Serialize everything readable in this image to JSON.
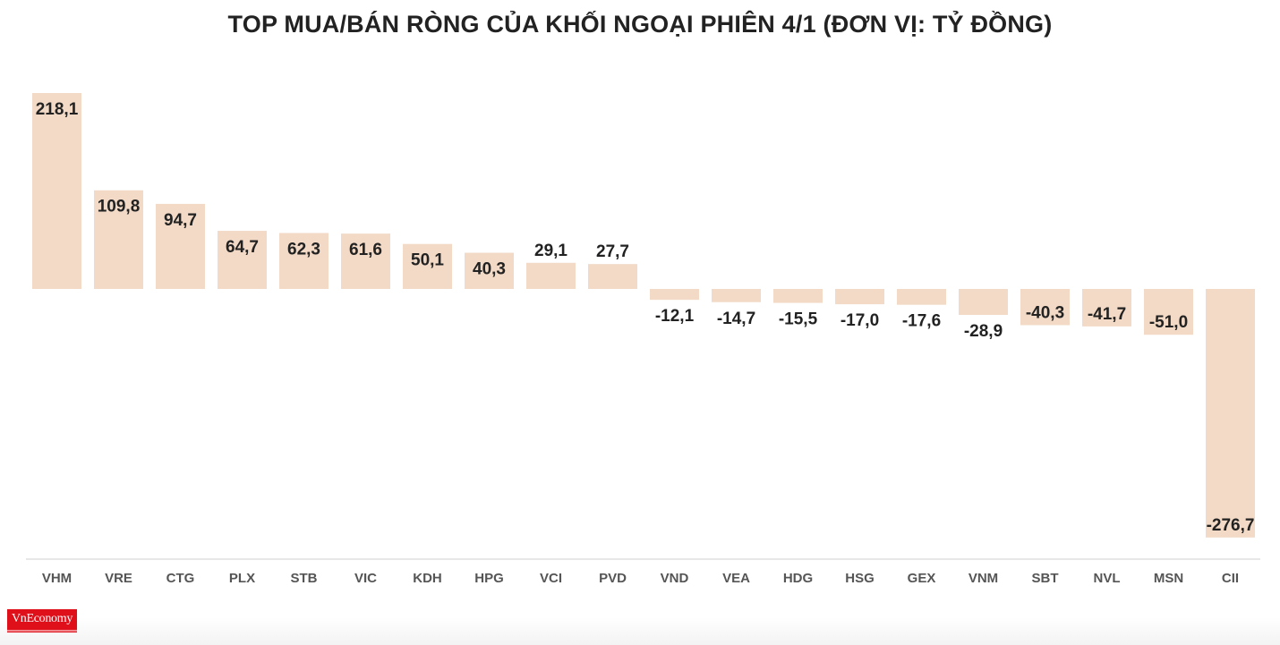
{
  "chart_data": {
    "type": "bar",
    "title": "TOP MUA/BÁN RÒNG CỦA KHỐI NGOẠI PHIÊN 4/1 (ĐƠN VỊ: TỶ ĐỒNG)",
    "categories": [
      "VHM",
      "VRE",
      "CTG",
      "PLX",
      "STB",
      "VIC",
      "KDH",
      "HPG",
      "VCI",
      "PVD",
      "VND",
      "VEA",
      "HDG",
      "HSG",
      "GEX",
      "VNM",
      "SBT",
      "NVL",
      "MSN",
      "CII"
    ],
    "values": [
      218.1,
      109.8,
      94.7,
      64.7,
      62.3,
      61.6,
      50.1,
      40.3,
      29.1,
      27.7,
      -12.1,
      -14.7,
      -15.5,
      -17.0,
      -17.6,
      -28.9,
      -40.3,
      -41.7,
      -51.0,
      -276.7
    ],
    "value_labels": [
      "218,1",
      "109,8",
      "94,7",
      "64,7",
      "62,3",
      "61,6",
      "50,1",
      "40,3",
      "29,1",
      "27,7",
      "-12,1",
      "-14,7",
      "-15,5",
      "-17,0",
      "-17,6",
      "-28,9",
      "-40,3",
      "-41,7",
      "-51,0",
      "-276,7"
    ],
    "xlabel": "",
    "ylabel": "",
    "ylim": [
      -276.7,
      218.1
    ],
    "grid": false,
    "bar_color": "#f2dac6"
  },
  "logo": {
    "text": "VnEconomy"
  }
}
